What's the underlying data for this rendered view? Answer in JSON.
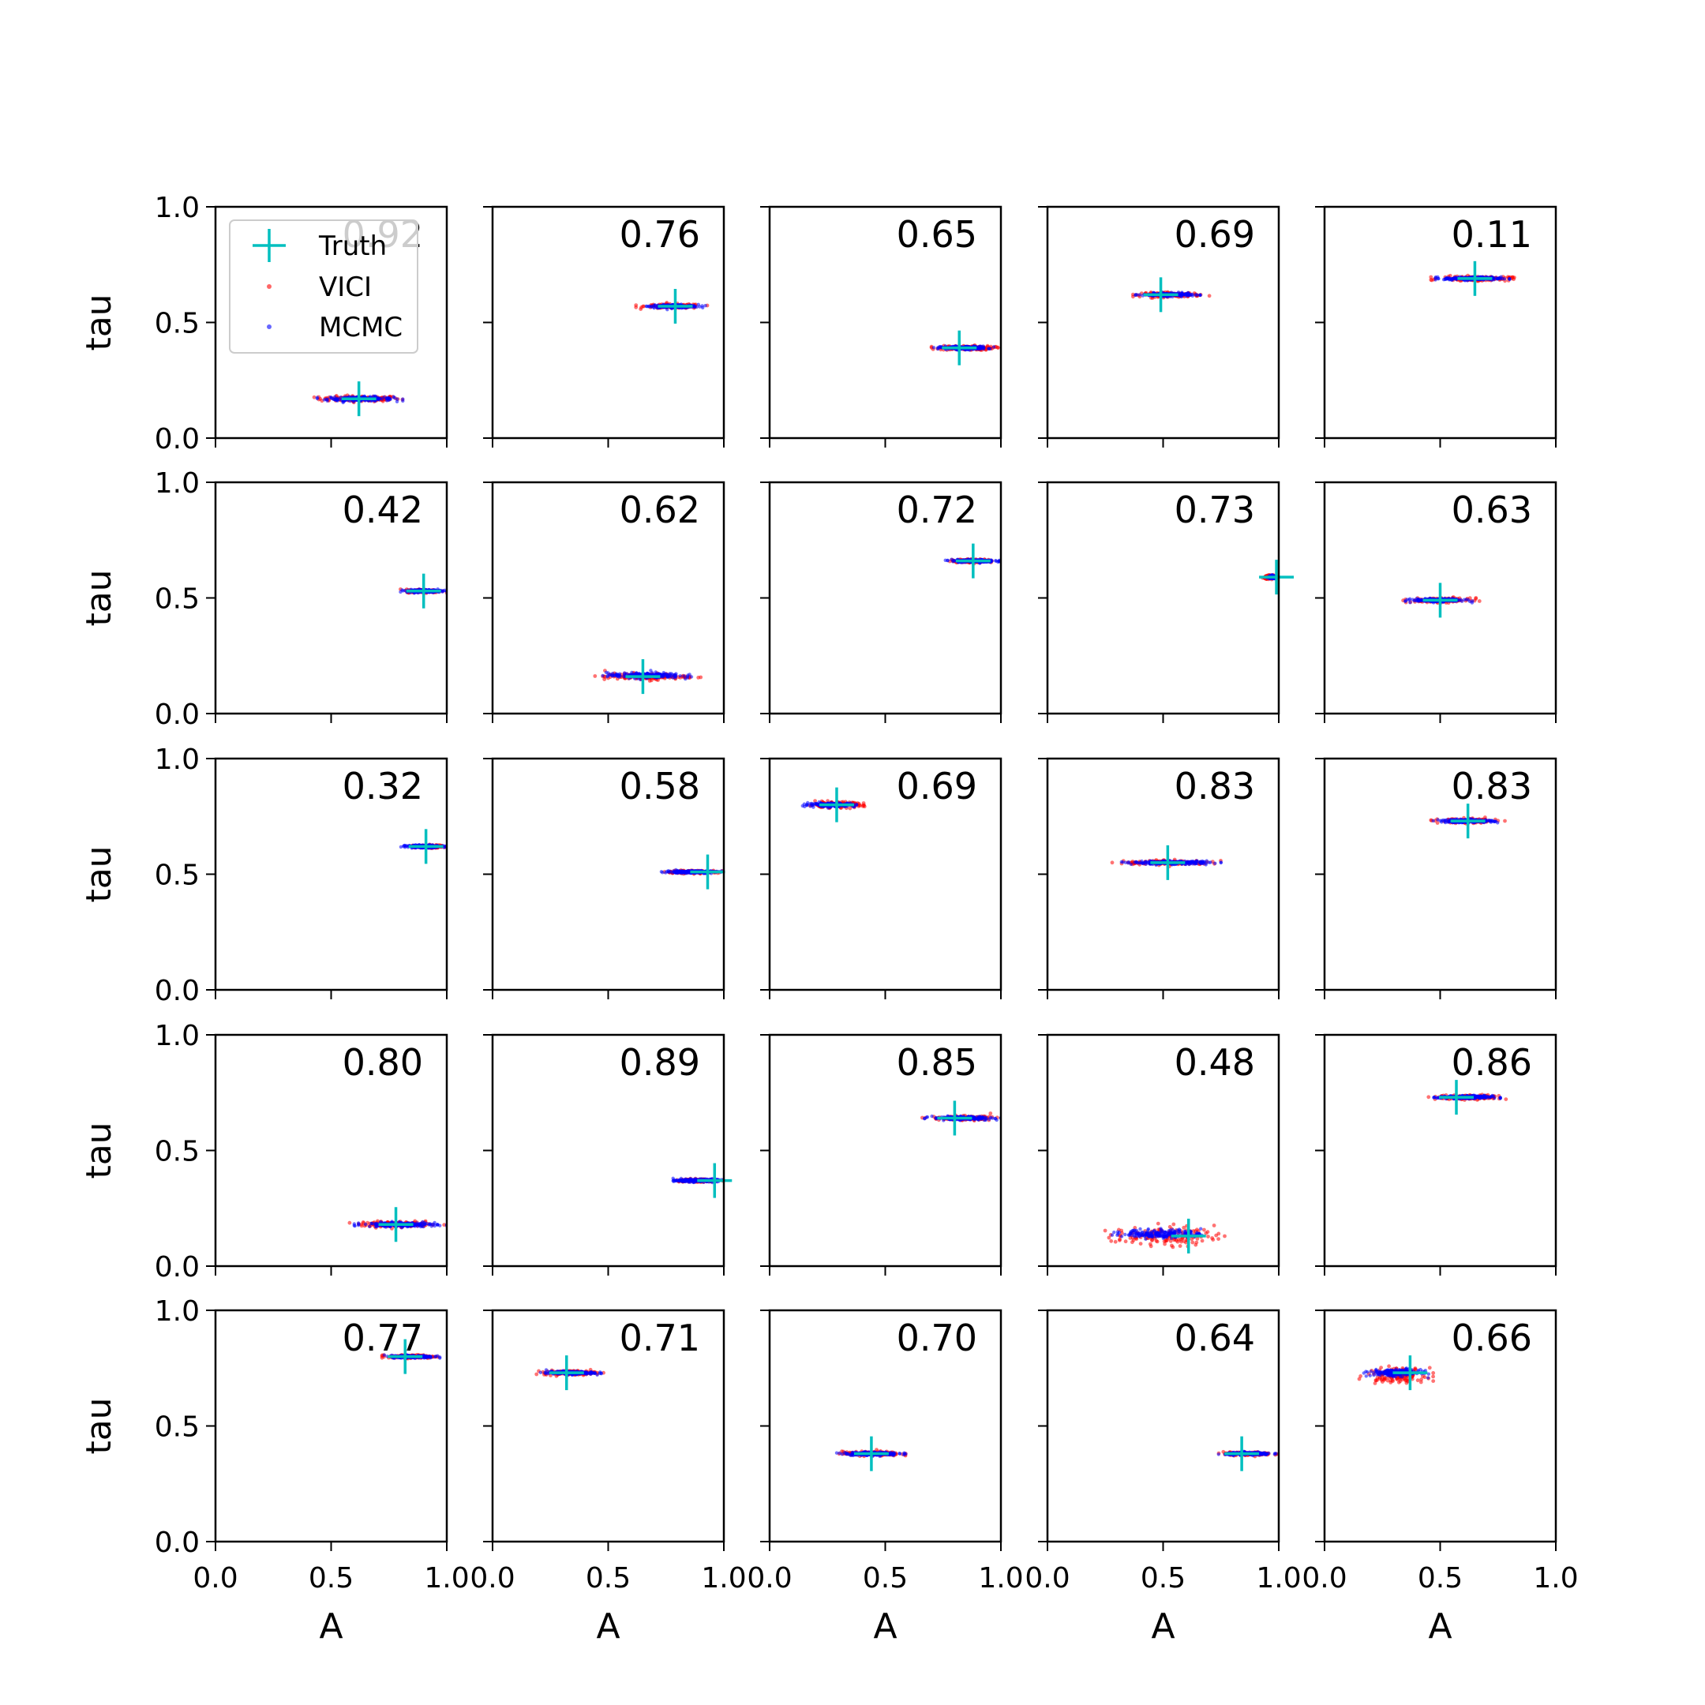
{
  "chart_data": {
    "type": "scatter",
    "grid": false,
    "xlabel": "A",
    "ylabel": "tau",
    "xlim": [
      0,
      1
    ],
    "ylim": [
      0,
      1
    ],
    "x_ticks": [
      "0.0",
      "0.5",
      "1.0"
    ],
    "y_ticks": [
      "0.0",
      "0.5",
      "1.0"
    ],
    "legend": {
      "placement": "upper-left of first panel",
      "entries": [
        {
          "label": "Truth",
          "color": "#00bfbf",
          "marker": "plus"
        },
        {
          "label": "VICI",
          "color": "#ff0000",
          "marker": "dot"
        },
        {
          "label": "MCMC",
          "color": "#0000ff",
          "marker": "dot"
        }
      ]
    },
    "colors": {
      "truth": "#00bfbf",
      "vici": "#ff0000",
      "mcmc": "#0000ff"
    },
    "panels": [
      {
        "score": "0.92",
        "truth": [
          0.62,
          0.17
        ],
        "vici": {
          "x": [
            0.4,
            0.85
          ],
          "y": 0.17,
          "dy": 0.01
        },
        "mcmc": {
          "x": [
            0.44,
            0.81
          ],
          "y": 0.17,
          "dy": 0.008
        }
      },
      {
        "score": "0.76",
        "truth": [
          0.79,
          0.57
        ],
        "vici": {
          "x": [
            0.62,
            0.94
          ],
          "y": 0.57,
          "dy": 0.008
        },
        "mcmc": {
          "x": [
            0.65,
            0.92
          ],
          "y": 0.57,
          "dy": 0.006
        }
      },
      {
        "score": "0.65",
        "truth": [
          0.82,
          0.39
        ],
        "vici": {
          "x": [
            0.7,
            1.0
          ],
          "y": 0.39,
          "dy": 0.008
        },
        "mcmc": {
          "x": [
            0.71,
            0.97
          ],
          "y": 0.39,
          "dy": 0.006
        }
      },
      {
        "score": "0.69",
        "truth": [
          0.49,
          0.62
        ],
        "vici": {
          "x": [
            0.37,
            0.7
          ],
          "y": 0.62,
          "dy": 0.008
        },
        "mcmc": {
          "x": [
            0.38,
            0.66
          ],
          "y": 0.62,
          "dy": 0.006
        }
      },
      {
        "score": "0.11",
        "truth": [
          0.65,
          0.69
        ],
        "vici": {
          "x": [
            0.46,
            0.85
          ],
          "y": 0.69,
          "dy": 0.008
        },
        "mcmc": {
          "x": [
            0.48,
            0.8
          ],
          "y": 0.69,
          "dy": 0.006
        }
      },
      {
        "score": "0.42",
        "truth": [
          0.9,
          0.53
        ],
        "vici": {
          "x": [
            0.8,
            1.0
          ],
          "y": 0.53,
          "dy": 0.006
        },
        "mcmc": {
          "x": [
            0.8,
            1.0
          ],
          "y": 0.53,
          "dy": 0.005
        }
      },
      {
        "score": "0.62",
        "truth": [
          0.65,
          0.16
        ],
        "vici": {
          "x": [
            0.43,
            0.9
          ],
          "y": 0.16,
          "dy": 0.012
        },
        "mcmc": {
          "x": [
            0.45,
            0.86
          ],
          "y": 0.165,
          "dy": 0.01
        }
      },
      {
        "score": "0.72",
        "truth": [
          0.88,
          0.66
        ],
        "vici": {
          "x": [
            0.76,
            1.0
          ],
          "y": 0.66,
          "dy": 0.006
        },
        "mcmc": {
          "x": [
            0.76,
            1.0
          ],
          "y": 0.66,
          "dy": 0.005
        }
      },
      {
        "score": "0.73",
        "truth": [
          0.99,
          0.59
        ],
        "vici": {
          "x": [
            0.93,
            1.0
          ],
          "y": 0.59,
          "dy": 0.006
        },
        "mcmc": {
          "x": [
            0.95,
            1.0
          ],
          "y": 0.59,
          "dy": 0.005
        }
      },
      {
        "score": "0.63",
        "truth": [
          0.5,
          0.49
        ],
        "vici": {
          "x": [
            0.34,
            0.67
          ],
          "y": 0.49,
          "dy": 0.008
        },
        "mcmc": {
          "x": [
            0.35,
            0.64
          ],
          "y": 0.49,
          "dy": 0.006
        }
      },
      {
        "score": "0.32",
        "truth": [
          0.91,
          0.62
        ],
        "vici": {
          "x": [
            0.84,
            1.0
          ],
          "y": 0.62,
          "dy": 0.005
        },
        "mcmc": {
          "x": [
            0.8,
            1.0
          ],
          "y": 0.62,
          "dy": 0.005
        }
      },
      {
        "score": "0.58",
        "truth": [
          0.93,
          0.51
        ],
        "vici": {
          "x": [
            0.72,
            1.0
          ],
          "y": 0.51,
          "dy": 0.005
        },
        "mcmc": {
          "x": [
            0.72,
            1.0
          ],
          "y": 0.51,
          "dy": 0.005
        }
      },
      {
        "score": "0.69",
        "truth": [
          0.29,
          0.8
        ],
        "vici": {
          "x": [
            0.13,
            0.44
          ],
          "y": 0.8,
          "dy": 0.01
        },
        "mcmc": {
          "x": [
            0.14,
            0.4
          ],
          "y": 0.8,
          "dy": 0.007
        }
      },
      {
        "score": "0.83",
        "truth": [
          0.52,
          0.55
        ],
        "vici": {
          "x": [
            0.28,
            0.76
          ],
          "y": 0.55,
          "dy": 0.008
        },
        "mcmc": {
          "x": [
            0.32,
            0.75
          ],
          "y": 0.55,
          "dy": 0.006
        }
      },
      {
        "score": "0.83",
        "truth": [
          0.62,
          0.73
        ],
        "vici": {
          "x": [
            0.46,
            0.78
          ],
          "y": 0.73,
          "dy": 0.008
        },
        "mcmc": {
          "x": [
            0.47,
            0.76
          ],
          "y": 0.73,
          "dy": 0.006
        }
      },
      {
        "score": "0.80",
        "truth": [
          0.78,
          0.18
        ],
        "vici": {
          "x": [
            0.58,
            1.0
          ],
          "y": 0.18,
          "dy": 0.01
        },
        "mcmc": {
          "x": [
            0.6,
            1.0
          ],
          "y": 0.18,
          "dy": 0.008
        }
      },
      {
        "score": "0.89",
        "truth": [
          0.96,
          0.37
        ],
        "vici": {
          "x": [
            0.77,
            1.0
          ],
          "y": 0.37,
          "dy": 0.006
        },
        "mcmc": {
          "x": [
            0.77,
            1.0
          ],
          "y": 0.37,
          "dy": 0.005
        }
      },
      {
        "score": "0.85",
        "truth": [
          0.8,
          0.64
        ],
        "vici": {
          "x": [
            0.66,
            1.0
          ],
          "y": 0.64,
          "dy": 0.008
        },
        "mcmc": {
          "x": [
            0.67,
            1.0
          ],
          "y": 0.64,
          "dy": 0.006
        }
      },
      {
        "score": "0.48",
        "truth": [
          0.61,
          0.13
        ],
        "vici": {
          "x": [
            0.23,
            0.78
          ],
          "y": 0.13,
          "dy": 0.035
        },
        "mcmc": {
          "x": [
            0.28,
            0.72
          ],
          "y": 0.14,
          "dy": 0.015
        }
      },
      {
        "score": "0.86",
        "truth": [
          0.57,
          0.73
        ],
        "vici": {
          "x": [
            0.45,
            0.8
          ],
          "y": 0.73,
          "dy": 0.008
        },
        "mcmc": {
          "x": [
            0.46,
            0.76
          ],
          "y": 0.73,
          "dy": 0.006
        }
      },
      {
        "score": "0.77",
        "truth": [
          0.82,
          0.8
        ],
        "vici": {
          "x": [
            0.72,
            0.98
          ],
          "y": 0.8,
          "dy": 0.006
        },
        "mcmc": {
          "x": [
            0.73,
            0.97
          ],
          "y": 0.8,
          "dy": 0.005
        }
      },
      {
        "score": "0.71",
        "truth": [
          0.32,
          0.73
        ],
        "vici": {
          "x": [
            0.19,
            0.48
          ],
          "y": 0.73,
          "dy": 0.008
        },
        "mcmc": {
          "x": [
            0.2,
            0.47
          ],
          "y": 0.73,
          "dy": 0.006
        }
      },
      {
        "score": "0.70",
        "truth": [
          0.44,
          0.38
        ],
        "vici": {
          "x": [
            0.28,
            0.6
          ],
          "y": 0.38,
          "dy": 0.008
        },
        "mcmc": {
          "x": [
            0.29,
            0.59
          ],
          "y": 0.38,
          "dy": 0.006
        }
      },
      {
        "score": "0.64",
        "truth": [
          0.84,
          0.38
        ],
        "vici": {
          "x": [
            0.73,
            1.0
          ],
          "y": 0.38,
          "dy": 0.006
        },
        "mcmc": {
          "x": [
            0.74,
            1.0
          ],
          "y": 0.38,
          "dy": 0.005
        }
      },
      {
        "score": "0.66",
        "truth": [
          0.37,
          0.73
        ],
        "vici": {
          "x": [
            0.15,
            0.47
          ],
          "y": 0.72,
          "dy": 0.025
        },
        "mcmc": {
          "x": [
            0.17,
            0.45
          ],
          "y": 0.73,
          "dy": 0.012
        }
      }
    ]
  }
}
